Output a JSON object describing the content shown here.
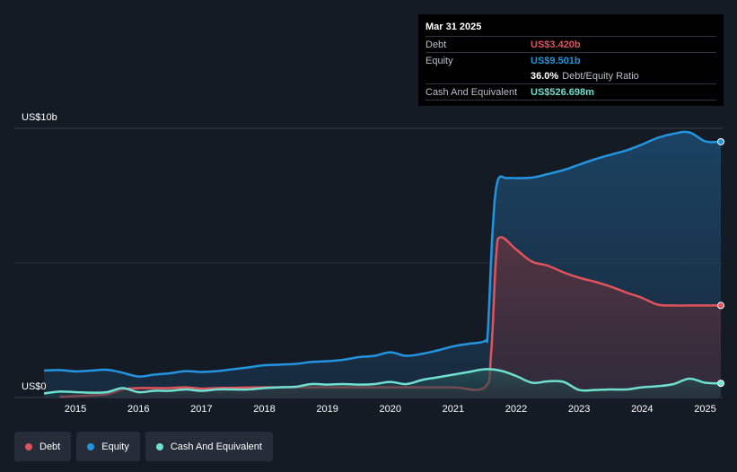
{
  "tooltip": {
    "date": "Mar 31 2025",
    "debt_label": "Debt",
    "debt_value": "US$3.420b",
    "equity_label": "Equity",
    "equity_value": "US$9.501b",
    "ratio_value": "36.0%",
    "ratio_label": "Debt/Equity Ratio",
    "cash_label": "Cash And Equivalent",
    "cash_value": "US$526.698m"
  },
  "legend": {
    "debt": "Debt",
    "equity": "Equity",
    "cash": "Cash And Equivalent"
  },
  "colors": {
    "background": "#151b24",
    "debt": "#e0535d",
    "equity": "#2394df",
    "cash": "#6fe0d0",
    "gridline": "#3a404a"
  },
  "chart_data": {
    "type": "area",
    "y_top_label": "US$10b",
    "y_bottom_label": "US$0",
    "ylim": [
      0,
      10
    ],
    "xlim": [
      2014.5,
      2025.25
    ],
    "x_tick_labels": [
      "2015",
      "2016",
      "2017",
      "2018",
      "2019",
      "2020",
      "2021",
      "2022",
      "2023",
      "2024",
      "2025"
    ],
    "x_tick_values": [
      2015,
      2016,
      2017,
      2018,
      2019,
      2020,
      2021,
      2022,
      2023,
      2024,
      2025
    ],
    "series": [
      {
        "name": "Equity",
        "points": [
          [
            2014.5,
            1.0
          ],
          [
            2014.75,
            1.02
          ],
          [
            2015.0,
            0.97
          ],
          [
            2015.25,
            1.0
          ],
          [
            2015.5,
            1.03
          ],
          [
            2015.75,
            0.92
          ],
          [
            2016.0,
            0.78
          ],
          [
            2016.25,
            0.85
          ],
          [
            2016.5,
            0.9
          ],
          [
            2016.75,
            0.98
          ],
          [
            2017.0,
            0.95
          ],
          [
            2017.25,
            0.98
          ],
          [
            2017.5,
            1.05
          ],
          [
            2017.75,
            1.12
          ],
          [
            2018.0,
            1.2
          ],
          [
            2018.25,
            1.22
          ],
          [
            2018.5,
            1.25
          ],
          [
            2018.75,
            1.32
          ],
          [
            2019.0,
            1.35
          ],
          [
            2019.25,
            1.4
          ],
          [
            2019.5,
            1.5
          ],
          [
            2019.75,
            1.55
          ],
          [
            2020.0,
            1.68
          ],
          [
            2020.25,
            1.55
          ],
          [
            2020.5,
            1.62
          ],
          [
            2020.75,
            1.75
          ],
          [
            2021.0,
            1.9
          ],
          [
            2021.25,
            2.0
          ],
          [
            2021.5,
            2.1
          ],
          [
            2021.55,
            2.5
          ],
          [
            2021.62,
            6.0
          ],
          [
            2021.7,
            8.0
          ],
          [
            2021.85,
            8.15
          ],
          [
            2022.0,
            8.15
          ],
          [
            2022.25,
            8.17
          ],
          [
            2022.5,
            8.3
          ],
          [
            2022.75,
            8.45
          ],
          [
            2023.0,
            8.65
          ],
          [
            2023.25,
            8.85
          ],
          [
            2023.5,
            9.02
          ],
          [
            2023.75,
            9.18
          ],
          [
            2024.0,
            9.4
          ],
          [
            2024.25,
            9.65
          ],
          [
            2024.5,
            9.8
          ],
          [
            2024.75,
            9.85
          ],
          [
            2025.0,
            9.52
          ],
          [
            2025.25,
            9.501
          ]
        ]
      },
      {
        "name": "Debt",
        "points": [
          [
            2014.75,
            0.03
          ],
          [
            2015.0,
            0.05
          ],
          [
            2015.25,
            0.08
          ],
          [
            2015.5,
            0.12
          ],
          [
            2015.75,
            0.3
          ],
          [
            2016.0,
            0.35
          ],
          [
            2016.25,
            0.35
          ],
          [
            2016.5,
            0.35
          ],
          [
            2016.75,
            0.38
          ],
          [
            2017.0,
            0.33
          ],
          [
            2017.25,
            0.35
          ],
          [
            2017.5,
            0.36
          ],
          [
            2017.75,
            0.37
          ],
          [
            2018.0,
            0.38
          ],
          [
            2018.5,
            0.38
          ],
          [
            2019.0,
            0.38
          ],
          [
            2019.5,
            0.38
          ],
          [
            2020.0,
            0.38
          ],
          [
            2020.5,
            0.38
          ],
          [
            2021.0,
            0.38
          ],
          [
            2021.5,
            0.38
          ],
          [
            2021.6,
            1.6
          ],
          [
            2021.68,
            5.2
          ],
          [
            2021.75,
            5.95
          ],
          [
            2022.0,
            5.5
          ],
          [
            2022.25,
            5.05
          ],
          [
            2022.5,
            4.9
          ],
          [
            2022.75,
            4.65
          ],
          [
            2023.0,
            4.45
          ],
          [
            2023.25,
            4.3
          ],
          [
            2023.5,
            4.12
          ],
          [
            2023.75,
            3.9
          ],
          [
            2024.0,
            3.7
          ],
          [
            2024.25,
            3.45
          ],
          [
            2024.5,
            3.42
          ],
          [
            2024.75,
            3.42
          ],
          [
            2025.0,
            3.42
          ],
          [
            2025.25,
            3.42
          ]
        ]
      },
      {
        "name": "Cash And Equivalent",
        "points": [
          [
            2014.5,
            0.15
          ],
          [
            2014.75,
            0.22
          ],
          [
            2015.0,
            0.2
          ],
          [
            2015.25,
            0.18
          ],
          [
            2015.5,
            0.2
          ],
          [
            2015.75,
            0.35
          ],
          [
            2016.0,
            0.2
          ],
          [
            2016.25,
            0.25
          ],
          [
            2016.5,
            0.25
          ],
          [
            2016.75,
            0.3
          ],
          [
            2017.0,
            0.25
          ],
          [
            2017.25,
            0.3
          ],
          [
            2017.5,
            0.3
          ],
          [
            2017.75,
            0.3
          ],
          [
            2018.0,
            0.35
          ],
          [
            2018.25,
            0.38
          ],
          [
            2018.5,
            0.4
          ],
          [
            2018.75,
            0.5
          ],
          [
            2019.0,
            0.48
          ],
          [
            2019.25,
            0.5
          ],
          [
            2019.5,
            0.48
          ],
          [
            2019.75,
            0.5
          ],
          [
            2020.0,
            0.58
          ],
          [
            2020.25,
            0.5
          ],
          [
            2020.5,
            0.65
          ],
          [
            2020.75,
            0.75
          ],
          [
            2021.0,
            0.85
          ],
          [
            2021.25,
            0.95
          ],
          [
            2021.5,
            1.05
          ],
          [
            2021.75,
            1.0
          ],
          [
            2022.0,
            0.8
          ],
          [
            2022.25,
            0.55
          ],
          [
            2022.5,
            0.6
          ],
          [
            2022.75,
            0.58
          ],
          [
            2023.0,
            0.28
          ],
          [
            2023.25,
            0.28
          ],
          [
            2023.5,
            0.3
          ],
          [
            2023.75,
            0.3
          ],
          [
            2024.0,
            0.38
          ],
          [
            2024.25,
            0.42
          ],
          [
            2024.5,
            0.5
          ],
          [
            2024.75,
            0.7
          ],
          [
            2025.0,
            0.55
          ],
          [
            2025.25,
            0.527
          ]
        ]
      }
    ],
    "grid": true,
    "legend_position": "bottom-left"
  }
}
